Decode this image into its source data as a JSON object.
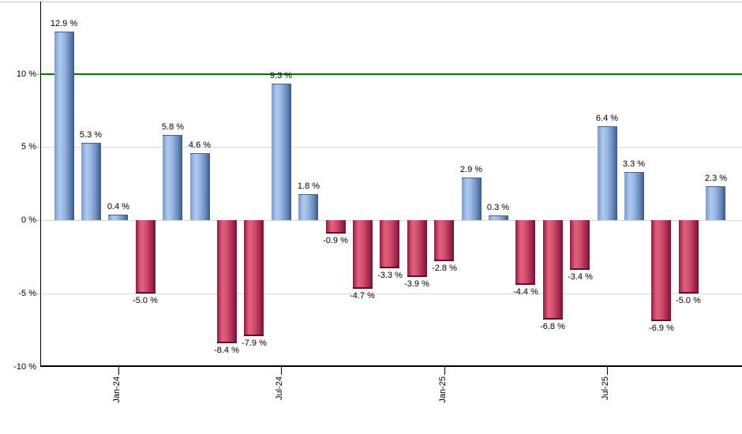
{
  "chart_data": {
    "type": "bar",
    "title": "",
    "unit": "%",
    "values": [
      12.9,
      5.3,
      0.4,
      -5.0,
      5.8,
      4.6,
      -8.4,
      -7.9,
      9.3,
      1.8,
      -0.9,
      -4.7,
      -3.3,
      -3.9,
      -2.8,
      2.9,
      0.3,
      -4.4,
      -6.8,
      -3.4,
      6.4,
      3.3,
      -6.9,
      -5.0,
      2.3
    ],
    "labels": [
      "12.9 %",
      "5.3 %",
      "0.4 %",
      "-5.0 %",
      "5.8 %",
      "4.6 %",
      "-8.4 %",
      "-7.9 %",
      "9.3 %",
      "1.8 %",
      "-0.9 %",
      "-4.7 %",
      "-3.3 %",
      "-3.9 %",
      "-2.8 %",
      "2.9 %",
      "0.3 %",
      "-4.4 %",
      "-6.8 %",
      "-3.4 %",
      "6.4 %",
      "3.3 %",
      "-6.9 %",
      "-5.0 %",
      "2.3 %"
    ],
    "y_axis": {
      "ticks": [
        {
          "label": "10 %",
          "value": 10,
          "line": "reference"
        },
        {
          "label": "5 %",
          "value": 5,
          "line": "grid"
        },
        {
          "label": "0 %",
          "value": 0,
          "line": "grid"
        },
        {
          "label": "-5 %",
          "value": -5,
          "line": "grid"
        },
        {
          "label": "-10 %",
          "value": -10,
          "line": "axis"
        }
      ],
      "range": [
        -10,
        14.9
      ]
    },
    "x_axis": {
      "ticks": [
        {
          "label": "Jan-24",
          "bar_index": 2
        },
        {
          "label": "Jul-24",
          "bar_index": 8
        },
        {
          "label": "Jan-25",
          "bar_index": 14
        },
        {
          "label": "Jul-25",
          "bar_index": 20
        }
      ]
    },
    "reference_line": {
      "value": 10,
      "color": "#067506"
    },
    "colors": {
      "positive_bar": "#88a8d8",
      "negative_bar": "#cf4a68",
      "grid": "#d9d9d9",
      "axis": "#000000",
      "label_text": "#000000"
    },
    "legend": "none",
    "grid": "on"
  }
}
